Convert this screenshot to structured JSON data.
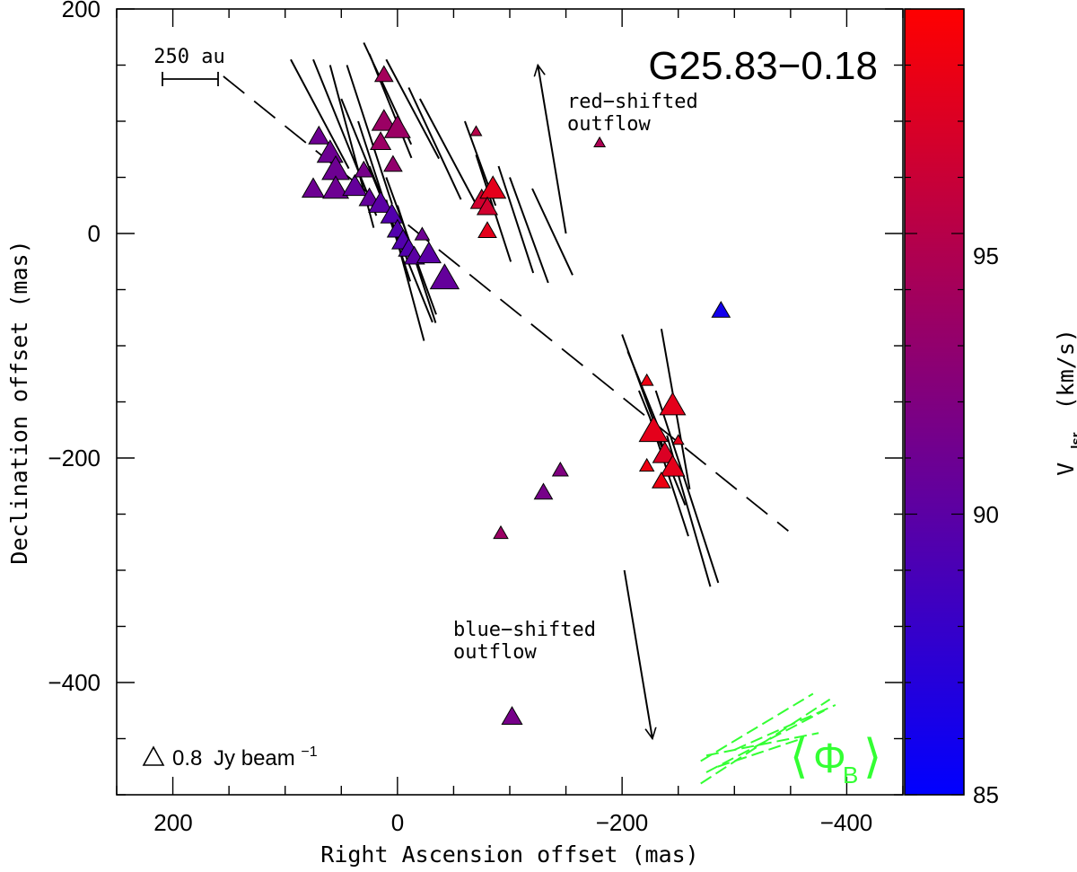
{
  "chart_data": {
    "type": "scatter",
    "title": "G25.83−0.18",
    "xlabel": "Right Ascension offset (mas)",
    "ylabel": "Declination offset (mas)",
    "xlim": [
      250,
      -450
    ],
    "ylim": [
      -500,
      200
    ],
    "xticks": [
      200,
      0,
      -200,
      -400
    ],
    "xtick_labels": [
      "200",
      "0",
      "−200",
      "−400"
    ],
    "yticks": [
      200,
      0,
      -200,
      -400
    ],
    "ytick_labels": [
      "200",
      "0",
      "−200",
      "−400"
    ],
    "colorbar": {
      "label_main": "V",
      "label_sub": "lsr",
      "label_unit": "(km/s)",
      "range": [
        85,
        99
      ],
      "ticks": [
        85,
        90,
        95
      ],
      "tick_labels": [
        "85",
        "90",
        "95"
      ],
      "color_low": "#0000ff",
      "color_high": "#ff0000"
    },
    "scale_bar": {
      "label": "250 au",
      "x_from": 210,
      "x_to": 160,
      "y": 140
    },
    "flux_legend": {
      "value": "0.8",
      "unit": "Jy beam",
      "exponent": "−1"
    },
    "annotations": [
      {
        "line1": "red−shifted",
        "line2": "outflow"
      },
      {
        "line1": "blue−shifted",
        "line2": "outflow"
      }
    ],
    "field_symbol": {
      "main": "Φ",
      "sub": "B",
      "color": "#33ff33"
    },
    "outflow_arrows": [
      {
        "name": "red-shifted",
        "from": [
          -150,
          0
        ],
        "to": [
          -125,
          150
        ]
      },
      {
        "name": "blue-shifted",
        "from": [
          -202,
          -300
        ],
        "to": [
          -227,
          -450
        ]
      }
    ],
    "dashed_line": {
      "from": [
        155,
        140
      ],
      "to": [
        -348,
        -265
      ]
    },
    "masers": [
      {
        "x": 12,
        "y": 140,
        "v": 94.0,
        "s": 0.8
      },
      {
        "x": 12,
        "y": 98,
        "v": 93.5,
        "s": 1.4
      },
      {
        "x": 0,
        "y": 92,
        "v": 93.5,
        "s": 1.6
      },
      {
        "x": 15,
        "y": 80,
        "v": 93.5,
        "s": 1.0
      },
      {
        "x": 4,
        "y": 60,
        "v": 93.0,
        "s": 0.8
      },
      {
        "x": -70,
        "y": 90,
        "v": 95.0,
        "s": 0.3
      },
      {
        "x": -180,
        "y": 80,
        "v": 94.5,
        "s": 0.3
      },
      {
        "x": 70,
        "y": 85,
        "v": 91.0,
        "s": 1.0
      },
      {
        "x": 60,
        "y": 70,
        "v": 91.0,
        "s": 1.6
      },
      {
        "x": 55,
        "y": 55,
        "v": 91.0,
        "s": 1.8
      },
      {
        "x": 75,
        "y": 38,
        "v": 91.0,
        "s": 1.2
      },
      {
        "x": 55,
        "y": 38,
        "v": 91.0,
        "s": 1.6
      },
      {
        "x": 38,
        "y": 40,
        "v": 90.5,
        "s": 1.4
      },
      {
        "x": 30,
        "y": 55,
        "v": 91.5,
        "s": 0.8
      },
      {
        "x": 25,
        "y": 30,
        "v": 90.5,
        "s": 1.0
      },
      {
        "x": 15,
        "y": 25,
        "v": 90.0,
        "s": 1.4
      },
      {
        "x": 5,
        "y": 15,
        "v": 89.5,
        "s": 1.2
      },
      {
        "x": 0,
        "y": 2,
        "v": 89.5,
        "s": 1.0
      },
      {
        "x": -5,
        "y": -8,
        "v": 89.5,
        "s": 1.2
      },
      {
        "x": -10,
        "y": -15,
        "v": 89.5,
        "s": 1.0
      },
      {
        "x": -22,
        "y": -2,
        "v": 91.0,
        "s": 0.5
      },
      {
        "x": -15,
        "y": -22,
        "v": 90.0,
        "s": 1.0
      },
      {
        "x": -28,
        "y": -20,
        "v": 90.0,
        "s": 1.4
      },
      {
        "x": -42,
        "y": -42,
        "v": 90.5,
        "s": 2.0
      },
      {
        "x": -75,
        "y": 28,
        "v": 96.5,
        "s": 1.2
      },
      {
        "x": -85,
        "y": 38,
        "v": 97.5,
        "s": 1.6
      },
      {
        "x": -80,
        "y": 22,
        "v": 96.5,
        "s": 1.0
      },
      {
        "x": -80,
        "y": 1,
        "v": 97.5,
        "s": 0.8
      },
      {
        "x": -222,
        "y": -132,
        "v": 98.0,
        "s": 0.4
      },
      {
        "x": -245,
        "y": -155,
        "v": 97.5,
        "s": 1.6
      },
      {
        "x": -228,
        "y": -178,
        "v": 97.5,
        "s": 2.0
      },
      {
        "x": -250,
        "y": -185,
        "v": 97.5,
        "s": 0.3
      },
      {
        "x": -238,
        "y": -198,
        "v": 97.0,
        "s": 1.4
      },
      {
        "x": -222,
        "y": -208,
        "v": 98.0,
        "s": 0.5
      },
      {
        "x": -245,
        "y": -210,
        "v": 97.5,
        "s": 1.4
      },
      {
        "x": -235,
        "y": -222,
        "v": 98.0,
        "s": 0.8
      },
      {
        "x": -288,
        "y": -70,
        "v": 86.0,
        "s": 0.8
      },
      {
        "x": -145,
        "y": -212,
        "v": 92.0,
        "s": 0.6
      },
      {
        "x": -130,
        "y": -232,
        "v": 91.5,
        "s": 0.8
      },
      {
        "x": -92,
        "y": -268,
        "v": 93.5,
        "s": 0.5
      },
      {
        "x": -102,
        "y": -432,
        "v": 91.5,
        "s": 1.0
      }
    ],
    "vectors": [
      {
        "x": 95,
        "y": 155,
        "a": 28,
        "l": 110
      },
      {
        "x": 75,
        "y": 155,
        "a": 22,
        "l": 150
      },
      {
        "x": 60,
        "y": 150,
        "a": 15,
        "l": 150
      },
      {
        "x": 45,
        "y": 150,
        "a": 18,
        "l": 130
      },
      {
        "x": 50,
        "y": 120,
        "a": 22,
        "l": 150
      },
      {
        "x": 35,
        "y": 100,
        "a": 18,
        "l": 150
      },
      {
        "x": 25,
        "y": 60,
        "a": 22,
        "l": 150
      },
      {
        "x": 10,
        "y": 50,
        "a": 20,
        "l": 130
      },
      {
        "x": 10,
        "y": 30,
        "a": 15,
        "l": 130
      },
      {
        "x": 0,
        "y": 25,
        "a": 18,
        "l": 110
      },
      {
        "x": -10,
        "y": 130,
        "a": 25,
        "l": 110
      },
      {
        "x": 30,
        "y": 170,
        "a": 25,
        "l": 100
      },
      {
        "x": 25,
        "y": 160,
        "a": 22,
        "l": 100
      },
      {
        "x": 10,
        "y": 155,
        "a": 28,
        "l": 100
      },
      {
        "x": -20,
        "y": 120,
        "a": 28,
        "l": 110
      },
      {
        "x": -60,
        "y": 100,
        "a": 20,
        "l": 80
      },
      {
        "x": -70,
        "y": 70,
        "a": 18,
        "l": 100
      },
      {
        "x": -90,
        "y": 60,
        "a": 18,
        "l": 100
      },
      {
        "x": -100,
        "y": 50,
        "a": 20,
        "l": 100
      },
      {
        "x": -120,
        "y": 40,
        "a": 25,
        "l": 85
      },
      {
        "x": -200,
        "y": -90,
        "a": 20,
        "l": 110
      },
      {
        "x": -205,
        "y": -105,
        "a": 22,
        "l": 90
      },
      {
        "x": -215,
        "y": -140,
        "a": 22,
        "l": 110
      },
      {
        "x": -225,
        "y": -165,
        "a": 18,
        "l": 110
      },
      {
        "x": -235,
        "y": -85,
        "a": 10,
        "l": 145
      },
      {
        "x": -240,
        "y": -180,
        "a": 16,
        "l": 140
      },
      {
        "x": -230,
        "y": -140,
        "a": 18,
        "l": 180
      }
    ],
    "field_lines": [
      {
        "from": [
          -270,
          -470
        ],
        "to": [
          -370,
          -410
        ]
      },
      {
        "from": [
          -275,
          -480
        ],
        "to": [
          -380,
          -425
        ]
      },
      {
        "from": [
          -270,
          -490
        ],
        "to": [
          -385,
          -415
        ]
      },
      {
        "from": [
          -285,
          -475
        ],
        "to": [
          -360,
          -450
        ]
      },
      {
        "from": [
          -275,
          -465
        ],
        "to": [
          -375,
          -445
        ]
      },
      {
        "from": [
          -300,
          -460
        ],
        "to": [
          -390,
          -420
        ]
      }
    ]
  }
}
